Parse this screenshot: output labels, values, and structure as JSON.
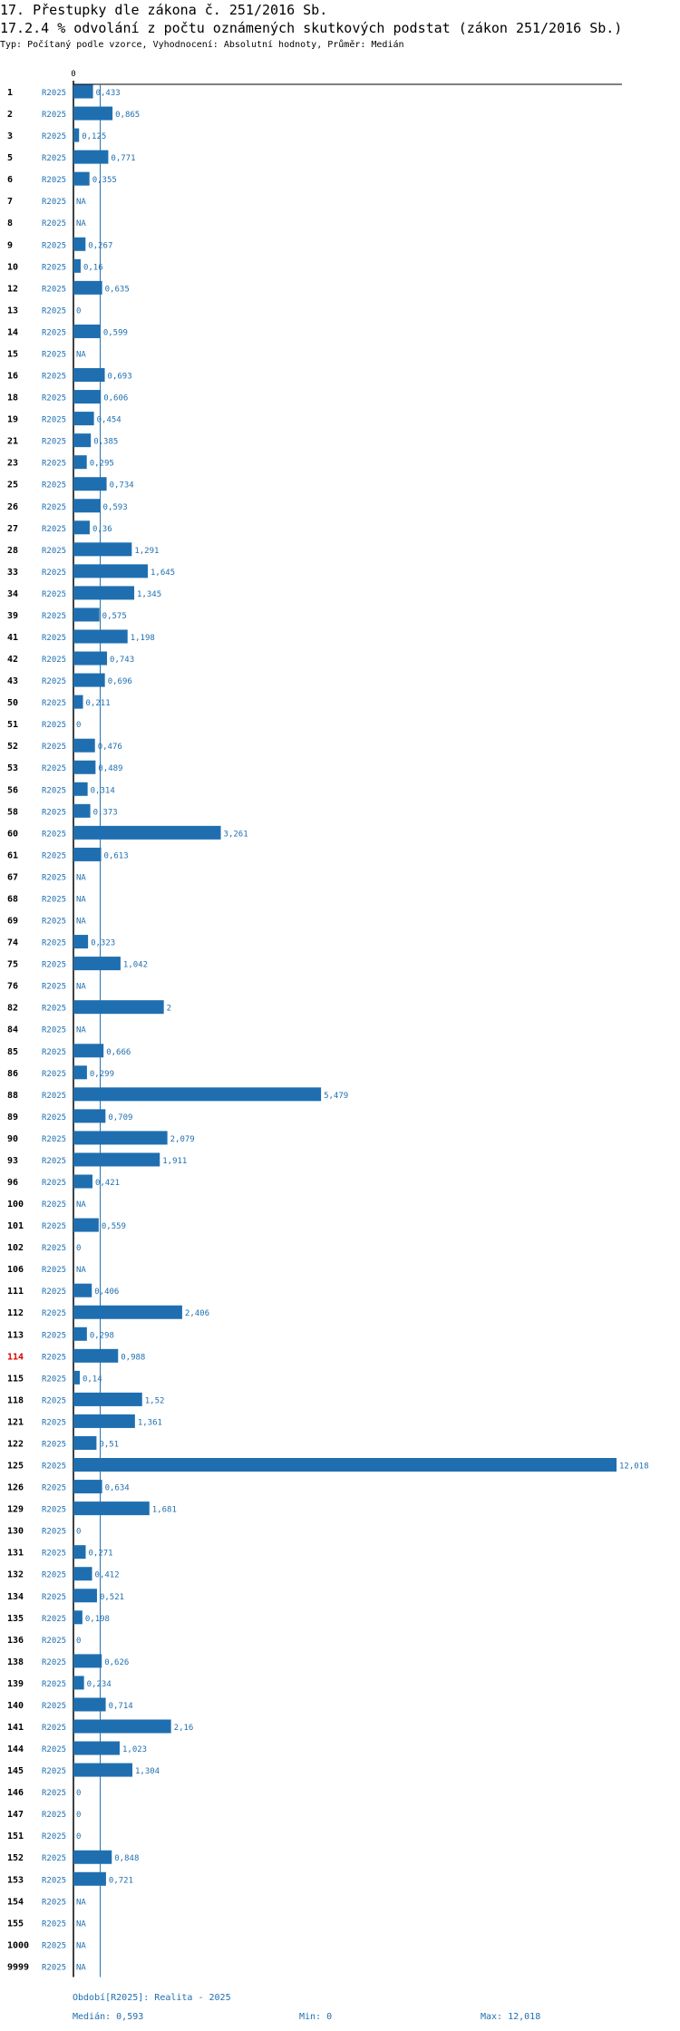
{
  "title_main": "17. Přestupky dle zákona č. 251/2016 Sb.",
  "title_sub": "17.2.4 % odvolání z počtu oznámených skutkových podstat (zákon 251/2016 Sb.)",
  "subtitle": "Typ: Počítaný podle vzorce, Vyhodnocení: Absolutní hodnoty, Průměr: Medián",
  "footer": {
    "period": "Období[R2025]: Realita - 2025",
    "median": "Medián: 0,593",
    "min": "Min: 0",
    "max": "Max: 12,018"
  },
  "colors": {
    "bar": "#1f6fb0",
    "label": "#1f6fb0",
    "highlight": "#e00000",
    "median_line": "#1f6fb0"
  },
  "chart_data": {
    "type": "bar",
    "orientation": "horizontal",
    "axis_zero_label": "0",
    "series_label": "R2025",
    "median": 0.593,
    "min": 0,
    "max": 12.018,
    "highlight_category": "114",
    "rows": [
      {
        "cat": "1",
        "value": 0.433,
        "label": "0,433"
      },
      {
        "cat": "2",
        "value": 0.865,
        "label": "0,865"
      },
      {
        "cat": "3",
        "value": 0.125,
        "label": "0,125"
      },
      {
        "cat": "5",
        "value": 0.771,
        "label": "0,771"
      },
      {
        "cat": "6",
        "value": 0.355,
        "label": "0,355"
      },
      {
        "cat": "7",
        "value": null,
        "label": "NA"
      },
      {
        "cat": "8",
        "value": null,
        "label": "NA"
      },
      {
        "cat": "9",
        "value": 0.267,
        "label": "0,267"
      },
      {
        "cat": "10",
        "value": 0.16,
        "label": "0,16"
      },
      {
        "cat": "12",
        "value": 0.635,
        "label": "0,635"
      },
      {
        "cat": "13",
        "value": 0,
        "label": "0"
      },
      {
        "cat": "14",
        "value": 0.599,
        "label": "0,599"
      },
      {
        "cat": "15",
        "value": null,
        "label": "NA"
      },
      {
        "cat": "16",
        "value": 0.693,
        "label": "0,693"
      },
      {
        "cat": "18",
        "value": 0.606,
        "label": "0,606"
      },
      {
        "cat": "19",
        "value": 0.454,
        "label": "0,454"
      },
      {
        "cat": "21",
        "value": 0.385,
        "label": "0,385"
      },
      {
        "cat": "23",
        "value": 0.295,
        "label": "0,295"
      },
      {
        "cat": "25",
        "value": 0.734,
        "label": "0,734"
      },
      {
        "cat": "26",
        "value": 0.593,
        "label": "0,593"
      },
      {
        "cat": "27",
        "value": 0.36,
        "label": "0,36"
      },
      {
        "cat": "28",
        "value": 1.291,
        "label": "1,291"
      },
      {
        "cat": "33",
        "value": 1.645,
        "label": "1,645"
      },
      {
        "cat": "34",
        "value": 1.345,
        "label": "1,345"
      },
      {
        "cat": "39",
        "value": 0.575,
        "label": "0,575"
      },
      {
        "cat": "41",
        "value": 1.198,
        "label": "1,198"
      },
      {
        "cat": "42",
        "value": 0.743,
        "label": "0,743"
      },
      {
        "cat": "43",
        "value": 0.696,
        "label": "0,696"
      },
      {
        "cat": "50",
        "value": 0.211,
        "label": "0,211"
      },
      {
        "cat": "51",
        "value": 0,
        "label": "0"
      },
      {
        "cat": "52",
        "value": 0.476,
        "label": "0,476"
      },
      {
        "cat": "53",
        "value": 0.489,
        "label": "0,489"
      },
      {
        "cat": "56",
        "value": 0.314,
        "label": "0,314"
      },
      {
        "cat": "58",
        "value": 0.373,
        "label": "0,373"
      },
      {
        "cat": "60",
        "value": 3.261,
        "label": "3,261"
      },
      {
        "cat": "61",
        "value": 0.613,
        "label": "0,613"
      },
      {
        "cat": "67",
        "value": null,
        "label": "NA"
      },
      {
        "cat": "68",
        "value": null,
        "label": "NA"
      },
      {
        "cat": "69",
        "value": null,
        "label": "NA"
      },
      {
        "cat": "74",
        "value": 0.323,
        "label": "0,323"
      },
      {
        "cat": "75",
        "value": 1.042,
        "label": "1,042"
      },
      {
        "cat": "76",
        "value": null,
        "label": "NA"
      },
      {
        "cat": "82",
        "value": 2,
        "label": "2"
      },
      {
        "cat": "84",
        "value": null,
        "label": "NA"
      },
      {
        "cat": "85",
        "value": 0.666,
        "label": "0,666"
      },
      {
        "cat": "86",
        "value": 0.299,
        "label": "0,299"
      },
      {
        "cat": "88",
        "value": 5.479,
        "label": "5,479"
      },
      {
        "cat": "89",
        "value": 0.709,
        "label": "0,709"
      },
      {
        "cat": "90",
        "value": 2.079,
        "label": "2,079"
      },
      {
        "cat": "93",
        "value": 1.911,
        "label": "1,911"
      },
      {
        "cat": "96",
        "value": 0.421,
        "label": "0,421"
      },
      {
        "cat": "100",
        "value": null,
        "label": "NA"
      },
      {
        "cat": "101",
        "value": 0.559,
        "label": "0,559"
      },
      {
        "cat": "102",
        "value": 0,
        "label": "0"
      },
      {
        "cat": "106",
        "value": null,
        "label": "NA"
      },
      {
        "cat": "111",
        "value": 0.406,
        "label": "0,406"
      },
      {
        "cat": "112",
        "value": 2.406,
        "label": "2,406"
      },
      {
        "cat": "113",
        "value": 0.298,
        "label": "0,298"
      },
      {
        "cat": "114",
        "value": 0.988,
        "label": "0,988"
      },
      {
        "cat": "115",
        "value": 0.14,
        "label": "0,14"
      },
      {
        "cat": "118",
        "value": 1.52,
        "label": "1,52"
      },
      {
        "cat": "121",
        "value": 1.361,
        "label": "1,361"
      },
      {
        "cat": "122",
        "value": 0.51,
        "label": "0,51"
      },
      {
        "cat": "125",
        "value": 12.018,
        "label": "12,018"
      },
      {
        "cat": "126",
        "value": 0.634,
        "label": "0,634"
      },
      {
        "cat": "129",
        "value": 1.681,
        "label": "1,681"
      },
      {
        "cat": "130",
        "value": 0,
        "label": "0"
      },
      {
        "cat": "131",
        "value": 0.271,
        "label": "0,271"
      },
      {
        "cat": "132",
        "value": 0.412,
        "label": "0,412"
      },
      {
        "cat": "134",
        "value": 0.521,
        "label": "0,521"
      },
      {
        "cat": "135",
        "value": 0.198,
        "label": "0,198"
      },
      {
        "cat": "136",
        "value": 0,
        "label": "0"
      },
      {
        "cat": "138",
        "value": 0.626,
        "label": "0,626"
      },
      {
        "cat": "139",
        "value": 0.234,
        "label": "0,234"
      },
      {
        "cat": "140",
        "value": 0.714,
        "label": "0,714"
      },
      {
        "cat": "141",
        "value": 2.16,
        "label": "2,16"
      },
      {
        "cat": "144",
        "value": 1.023,
        "label": "1,023"
      },
      {
        "cat": "145",
        "value": 1.304,
        "label": "1,304"
      },
      {
        "cat": "146",
        "value": 0,
        "label": "0"
      },
      {
        "cat": "147",
        "value": 0,
        "label": "0"
      },
      {
        "cat": "151",
        "value": 0,
        "label": "0"
      },
      {
        "cat": "152",
        "value": 0.848,
        "label": "0,848"
      },
      {
        "cat": "153",
        "value": 0.721,
        "label": "0,721"
      },
      {
        "cat": "154",
        "value": null,
        "label": "NA"
      },
      {
        "cat": "155",
        "value": null,
        "label": "NA"
      },
      {
        "cat": "1000",
        "value": null,
        "label": "NA"
      },
      {
        "cat": "9999",
        "value": null,
        "label": "NA"
      }
    ]
  }
}
